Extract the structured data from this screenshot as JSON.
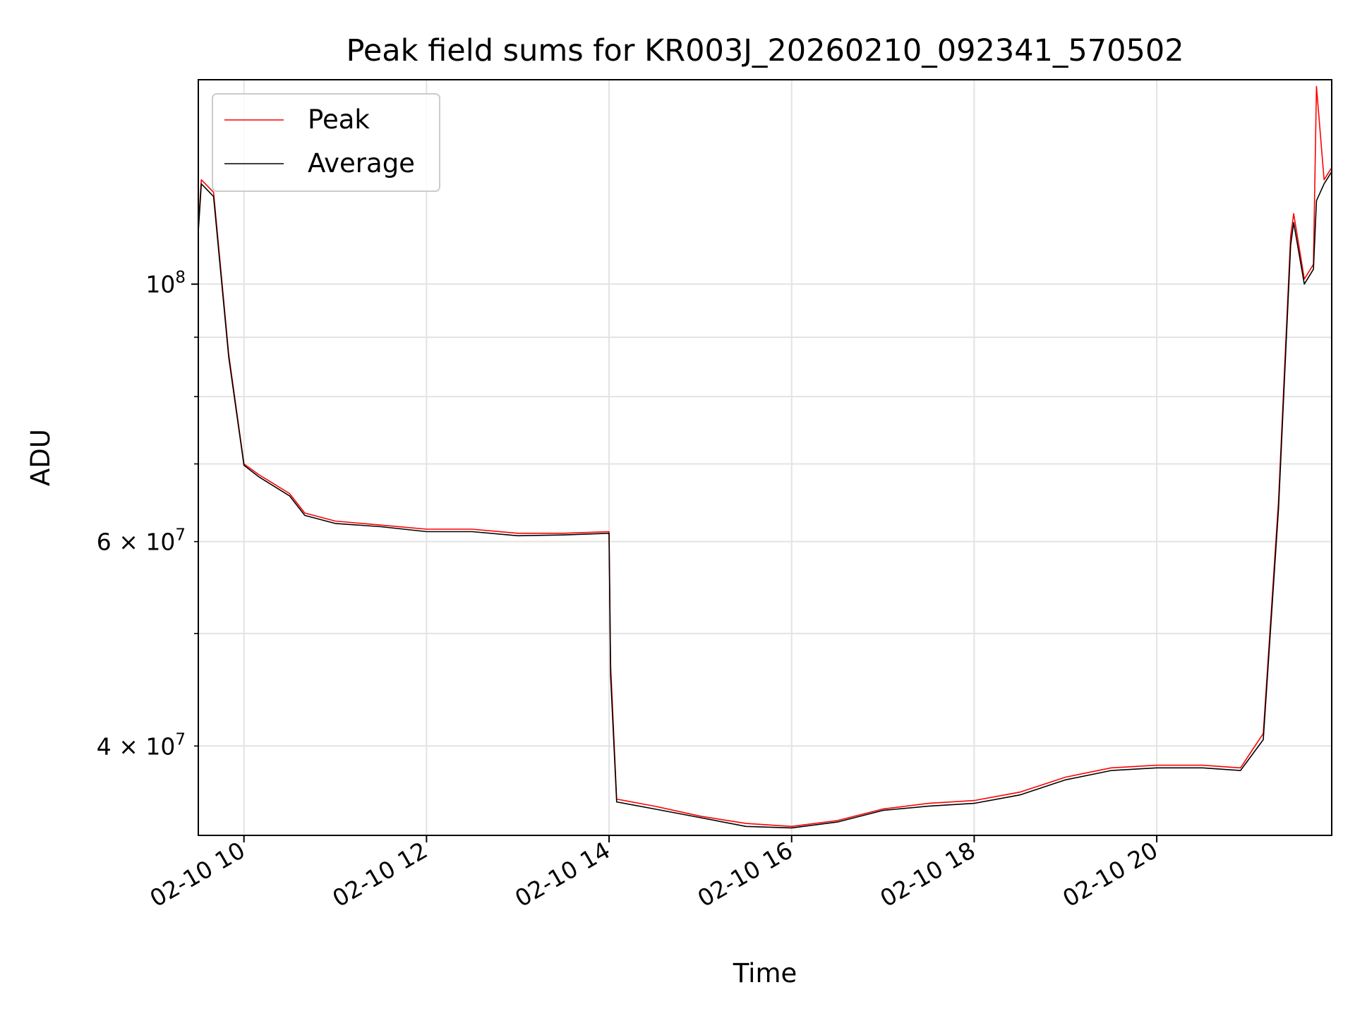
{
  "chart_data": {
    "type": "line",
    "title": "Peak field sums for KR003J_20260210_092341_570502",
    "xlabel": "Time",
    "ylabel": "ADU",
    "yscale": "log",
    "xlim": [
      "2026-02-10 09:30",
      "2026-02-10 21:55"
    ],
    "ylim": [
      33500000,
      150000000
    ],
    "grid": true,
    "legend_position": "top-left",
    "x_ticks": [
      {
        "time": "2026-02-10 10:00",
        "label": "02-10 10"
      },
      {
        "time": "2026-02-10 12:00",
        "label": "02-10 12"
      },
      {
        "time": "2026-02-10 14:00",
        "label": "02-10 14"
      },
      {
        "time": "2026-02-10 16:00",
        "label": "02-10 16"
      },
      {
        "time": "2026-02-10 18:00",
        "label": "02-10 18"
      },
      {
        "time": "2026-02-10 20:00",
        "label": "02-10 20"
      }
    ],
    "y_major_ticks": [
      {
        "value": 100000000,
        "base": "10",
        "exp": "8"
      }
    ],
    "y_minor_labeled_ticks": [
      {
        "value": 60000000,
        "mant": "6 × 10",
        "exp": "7"
      },
      {
        "value": 40000000,
        "mant": "4 × 10",
        "exp": "7"
      }
    ],
    "y_minor_ticks": [
      40000000,
      50000000,
      60000000,
      70000000,
      80000000,
      90000000
    ],
    "series": [
      {
        "name": "Peak",
        "color": "#ff0000",
        "x": [
          "2026-02-10 09:30",
          "2026-02-10 09:32",
          "2026-02-10 09:40",
          "2026-02-10 09:50",
          "2026-02-10 10:00",
          "2026-02-10 10:10",
          "2026-02-10 10:30",
          "2026-02-10 10:40",
          "2026-02-10 11:00",
          "2026-02-10 11:30",
          "2026-02-10 12:00",
          "2026-02-10 12:30",
          "2026-02-10 13:00",
          "2026-02-10 13:30",
          "2026-02-10 14:00",
          "2026-02-10 14:01",
          "2026-02-10 14:05",
          "2026-02-10 14:30",
          "2026-02-10 15:00",
          "2026-02-10 15:30",
          "2026-02-10 16:00",
          "2026-02-10 16:30",
          "2026-02-10 17:00",
          "2026-02-10 17:30",
          "2026-02-10 18:00",
          "2026-02-10 18:30",
          "2026-02-10 19:00",
          "2026-02-10 19:30",
          "2026-02-10 20:00",
          "2026-02-10 20:30",
          "2026-02-10 20:55",
          "2026-02-10 21:10",
          "2026-02-10 21:20",
          "2026-02-10 21:28",
          "2026-02-10 21:30",
          "2026-02-10 21:37",
          "2026-02-10 21:43",
          "2026-02-10 21:45",
          "2026-02-10 21:50",
          "2026-02-10 21:55"
        ],
        "y": [
          112000000,
          123000000,
          120000000,
          87000000,
          70000000,
          68500000,
          66000000,
          63500000,
          62500000,
          62000000,
          61500000,
          61500000,
          61000000,
          61000000,
          61200000,
          47000000,
          36000000,
          35500000,
          34800000,
          34300000,
          34100000,
          34500000,
          35300000,
          35700000,
          35900000,
          36500000,
          37600000,
          38300000,
          38500000,
          38500000,
          38300000,
          41000000,
          65000000,
          110000000,
          115000000,
          101000000,
          104000000,
          148000000,
          123000000,
          126000000
        ]
      },
      {
        "name": "Average",
        "color": "#000000",
        "x": [
          "2026-02-10 09:30",
          "2026-02-10 09:32",
          "2026-02-10 09:40",
          "2026-02-10 09:50",
          "2026-02-10 10:00",
          "2026-02-10 10:10",
          "2026-02-10 10:30",
          "2026-02-10 10:40",
          "2026-02-10 11:00",
          "2026-02-10 11:30",
          "2026-02-10 12:00",
          "2026-02-10 12:30",
          "2026-02-10 13:00",
          "2026-02-10 13:30",
          "2026-02-10 14:00",
          "2026-02-10 14:01",
          "2026-02-10 14:05",
          "2026-02-10 14:30",
          "2026-02-10 15:00",
          "2026-02-10 15:30",
          "2026-02-10 16:00",
          "2026-02-10 16:30",
          "2026-02-10 17:00",
          "2026-02-10 17:30",
          "2026-02-10 18:00",
          "2026-02-10 18:30",
          "2026-02-10 19:00",
          "2026-02-10 19:30",
          "2026-02-10 20:00",
          "2026-02-10 20:30",
          "2026-02-10 20:55",
          "2026-02-10 21:10",
          "2026-02-10 21:20",
          "2026-02-10 21:28",
          "2026-02-10 21:30",
          "2026-02-10 21:37",
          "2026-02-10 21:43",
          "2026-02-10 21:45",
          "2026-02-10 21:50",
          "2026-02-10 21:55"
        ],
        "y": [
          111000000,
          122000000,
          119000000,
          86500000,
          69800000,
          68200000,
          65700000,
          63200000,
          62200000,
          61800000,
          61200000,
          61200000,
          60700000,
          60800000,
          61000000,
          46000000,
          35800000,
          35300000,
          34700000,
          34100000,
          34000000,
          34400000,
          35200000,
          35500000,
          35700000,
          36300000,
          37400000,
          38100000,
          38300000,
          38300000,
          38100000,
          40500000,
          64000000,
          108000000,
          113000000,
          100000000,
          103000000,
          118000000,
          122000000,
          125000000
        ]
      }
    ]
  }
}
